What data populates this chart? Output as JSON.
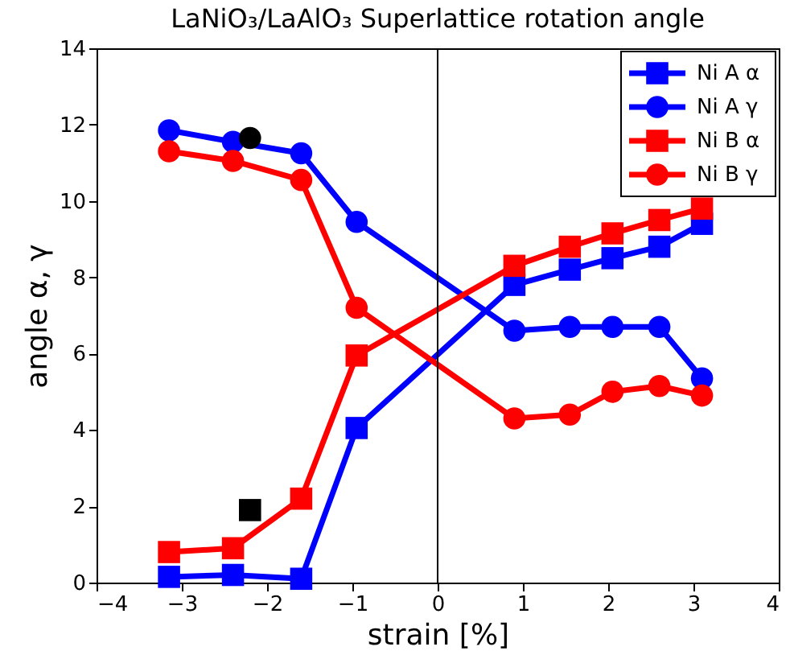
{
  "chart_data": {
    "type": "line",
    "title": "LaNiO₃/LaAlO₃ Superlattice rotation angle",
    "xlabel": "strain [%]",
    "ylabel": "angle α, γ",
    "x": [
      -3.15,
      -2.4,
      -1.6,
      -0.95,
      0.9,
      1.55,
      2.05,
      2.6,
      3.1
    ],
    "series": [
      {
        "name": "Ni A α",
        "color": "#0000ff",
        "marker": "square",
        "values": [
          0.15,
          0.2,
          0.1,
          4.05,
          7.8,
          8.2,
          8.5,
          8.8,
          9.4
        ]
      },
      {
        "name": "Ni A γ",
        "color": "#0000ff",
        "marker": "circle",
        "values": [
          11.85,
          11.55,
          11.25,
          9.45,
          6.6,
          6.7,
          6.7,
          6.7,
          5.35
        ]
      },
      {
        "name": "Ni B α",
        "color": "#ff0000",
        "marker": "square",
        "values": [
          0.8,
          0.9,
          2.2,
          5.95,
          8.3,
          8.8,
          9.15,
          9.5,
          9.8
        ]
      },
      {
        "name": "Ni B γ",
        "color": "#ff0000",
        "marker": "circle",
        "values": [
          11.3,
          11.05,
          10.55,
          7.2,
          4.3,
          4.4,
          5.0,
          5.15,
          4.9
        ]
      },
      {
        "type": "scatter",
        "color": "#000000",
        "marker": "circle",
        "x": [
          -2.2
        ],
        "values": [
          11.65
        ]
      },
      {
        "type": "scatter",
        "color": "#000000",
        "marker": "square",
        "x": [
          -2.2
        ],
        "values": [
          1.9
        ]
      }
    ],
    "xlim": [
      -4,
      4
    ],
    "xticks": [
      -4,
      -3,
      -2,
      -1,
      0,
      1,
      2,
      3,
      4
    ],
    "ylim": [
      0,
      14
    ],
    "yticks": [
      0,
      2,
      4,
      6,
      8,
      10,
      12,
      14
    ],
    "ref_lines": [
      {
        "axis": "x",
        "value": 0,
        "color": "#000000"
      }
    ],
    "grid": false,
    "legend": "top right",
    "line_style": "solid"
  }
}
